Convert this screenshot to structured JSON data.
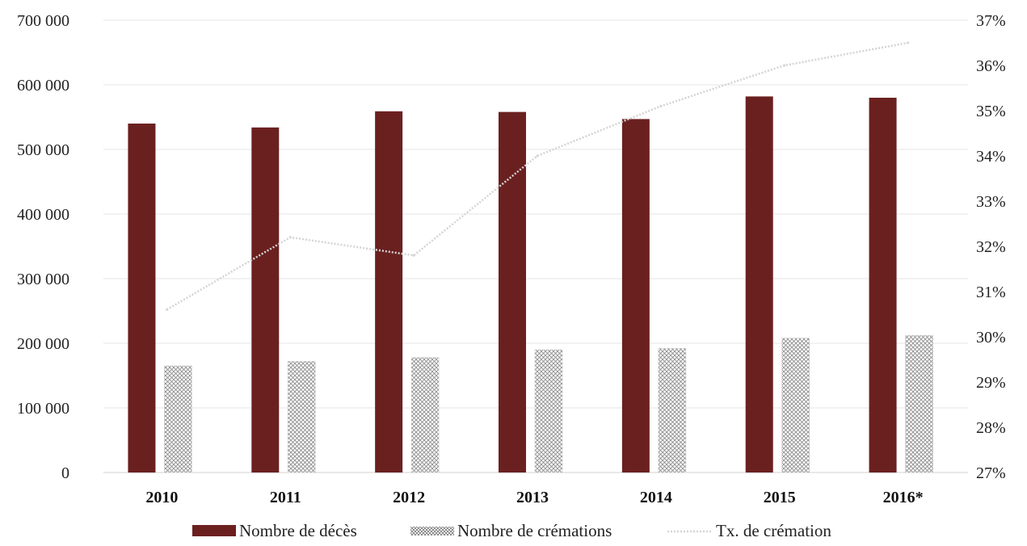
{
  "chart_data": {
    "type": "bar",
    "categories": [
      "2010",
      "2011",
      "2012",
      "2013",
      "2014",
      "2015",
      "2016*"
    ],
    "series": [
      {
        "name": "Nombre de décès",
        "type": "bar",
        "axis": "left",
        "color": "#6b2020",
        "values": [
          540000,
          534000,
          559000,
          558000,
          547000,
          582000,
          580000
        ]
      },
      {
        "name": "Nombre de crémations",
        "type": "bar",
        "axis": "left",
        "color": "#9a9a9a",
        "pattern": "crosshatch",
        "values": [
          165000,
          172000,
          178000,
          190000,
          192000,
          208000,
          212000
        ]
      },
      {
        "name": "Tx. de crémation",
        "type": "line",
        "axis": "right",
        "color": "#d4d4d4",
        "values": [
          30.6,
          32.2,
          31.8,
          34.0,
          35.1,
          36.0,
          36.5
        ]
      }
    ],
    "left_axis": {
      "min": 0,
      "max": 700000,
      "ticks": [
        0,
        100000,
        200000,
        300000,
        400000,
        500000,
        600000,
        700000
      ],
      "tick_labels": [
        "0",
        "100 000",
        "200 000",
        "300 000",
        "400 000",
        "500 000",
        "600 000",
        "700 000"
      ]
    },
    "right_axis": {
      "min": 27,
      "max": 37,
      "ticks": [
        27,
        28,
        29,
        30,
        31,
        32,
        33,
        34,
        35,
        36,
        37
      ],
      "tick_labels": [
        "27%",
        "28%",
        "29%",
        "30%",
        "31%",
        "32%",
        "33%",
        "34%",
        "35%",
        "36%",
        "37%"
      ]
    },
    "grid": true,
    "legend_position": "bottom",
    "title": "",
    "xlabel": "",
    "ylabel": ""
  }
}
